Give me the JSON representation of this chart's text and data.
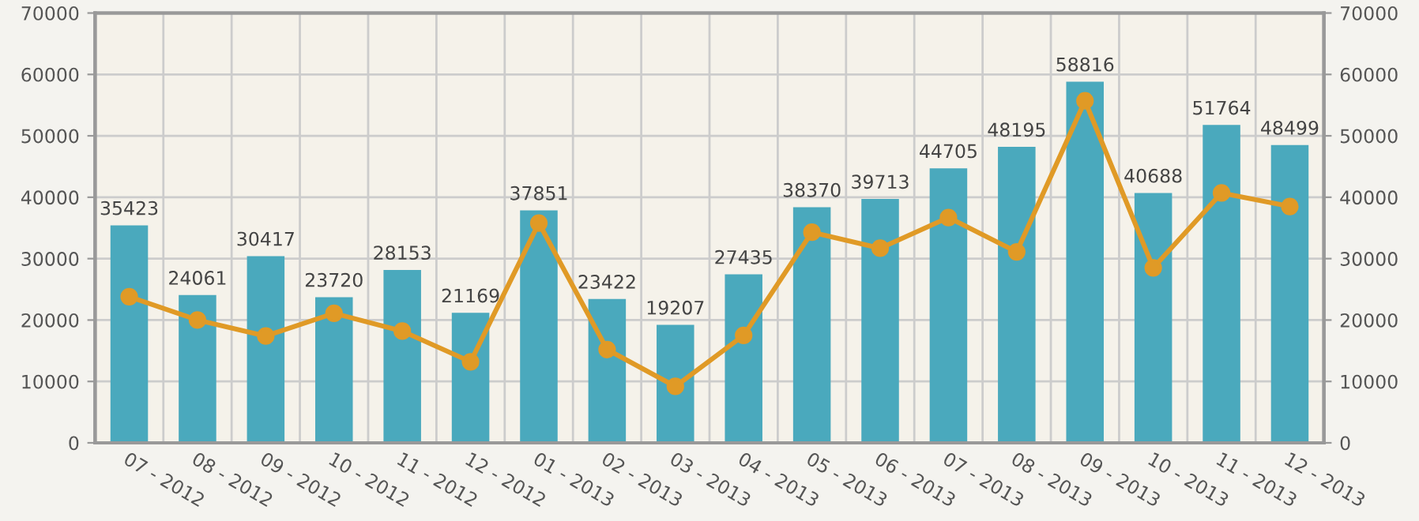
{
  "chart_data": {
    "type": "bar",
    "categories": [
      "07 - 2012",
      "08 - 2012",
      "09 - 2012",
      "10 - 2012",
      "11 - 2012",
      "12 - 2012",
      "01 - 2013",
      "02 - 2013",
      "03 - 2013",
      "04 - 2013",
      "05 - 2013",
      "06 - 2013",
      "07 - 2013",
      "08 - 2013",
      "09 - 2013",
      "10 - 2013",
      "11 - 2013",
      "12 - 2013"
    ],
    "series": [
      {
        "color": "#4aa9bd",
        "values": [
          35423,
          24061,
          30417,
          23720,
          28153,
          21169,
          37851,
          23422,
          19207,
          27435,
          38370,
          39713,
          44705,
          48195,
          58816,
          40688,
          51764,
          48499
        ],
        "value_labels": [
          "35423",
          "24061",
          "30417",
          "23720",
          "28153",
          "21169",
          "37851",
          "23422",
          "19207",
          "27435",
          "38370",
          "39713",
          "44705",
          "48195",
          "58816",
          "40688",
          "51764",
          "48499"
        ]
      },
      {
        "type": "line",
        "color": "#e09a26",
        "marker": "circle",
        "values": [
          23800,
          20000,
          17400,
          21100,
          18200,
          13200,
          35800,
          15200,
          9200,
          17500,
          34300,
          31700,
          36700,
          31100,
          55700,
          28500,
          40700,
          38500
        ]
      }
    ],
    "ylim": [
      0,
      70000
    ],
    "yticks": [
      0,
      10000,
      20000,
      30000,
      40000,
      50000,
      60000,
      70000
    ],
    "y2lim": [
      0,
      70000
    ],
    "y2ticks": [
      0,
      10000,
      20000,
      30000,
      40000,
      50000,
      60000,
      70000
    ],
    "grid": true,
    "legend": false
  }
}
